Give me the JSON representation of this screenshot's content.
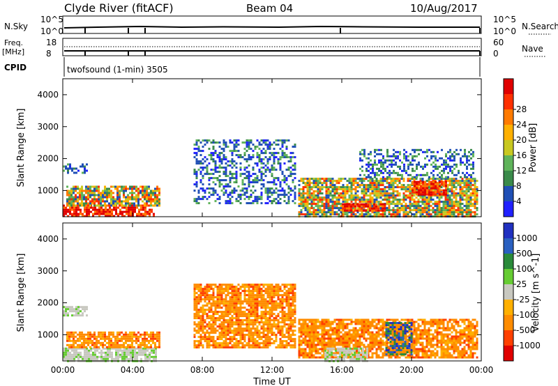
{
  "header": {
    "station": "Clyde River (fitACF)",
    "beam": "Beam 04",
    "date": "10/Aug/2017"
  },
  "panel_labels": {
    "nsky": "N.Sky",
    "nsearch": "N.Search",
    "nsky_top": "10^5",
    "nsky_bottom": "10^0",
    "nsearch_top": "10^5",
    "nsearch_bottom": "10^0",
    "freq_line1": "Freq.",
    "freq_line2": "[MHz]",
    "freq_top": "18",
    "freq_bottom": "8",
    "nave": "Nave",
    "nave_top": "60",
    "nave_bottom": "0",
    "cpid": "CPID",
    "cpid_value": "twofsound (1-min) 3505"
  },
  "colors": {
    "power_scale": [
      "#2020ff",
      "#1f4fb5",
      "#3a8a4a",
      "#5fb35a",
      "#c8c820",
      "#ffb000",
      "#ff7a00",
      "#ff3000",
      "#e00000"
    ],
    "velocity_scale": [
      "#2030c0",
      "#2a60c0",
      "#2a8a3a",
      "#66cc33",
      "#c8c8c0",
      "#ffb000",
      "#ff8c00",
      "#ff4000",
      "#e00000"
    ]
  },
  "chart_data": [
    {
      "type": "heatmap",
      "title": "",
      "ylabel": "Slant Range [km]",
      "xlabel": "Time UT",
      "x_ticks": [
        "00:00",
        "04:00",
        "08:00",
        "12:00",
        "16:00",
        "20:00",
        "00:00"
      ],
      "y_ticks": [
        1000,
        2000,
        3000,
        4000
      ],
      "ylim": [
        180,
        4500
      ],
      "xlim_hours": [
        0,
        24
      ],
      "colorbar": {
        "label": "Power [dB]",
        "ticks": [
          "4",
          "8",
          "12",
          "16",
          "20",
          "24",
          "28"
        ]
      },
      "regions": [
        {
          "t0": 0.0,
          "t1": 5.2,
          "r0": 180,
          "r1": 560,
          "level": "high"
        },
        {
          "t0": 0.2,
          "t1": 5.6,
          "r0": 560,
          "r1": 1150,
          "level": "mid"
        },
        {
          "t0": 0.0,
          "t1": 1.4,
          "r0": 1550,
          "r1": 1850,
          "level": "low"
        },
        {
          "t0": 7.5,
          "t1": 13.3,
          "r0": 600,
          "r1": 2600,
          "level": "low"
        },
        {
          "t0": 13.5,
          "t1": 23.8,
          "r0": 180,
          "r1": 1400,
          "level": "mid"
        },
        {
          "t0": 16.0,
          "t1": 18.5,
          "r0": 350,
          "r1": 600,
          "level": "high"
        },
        {
          "t0": 20.0,
          "t1": 22.0,
          "r0": 900,
          "r1": 1300,
          "level": "high"
        },
        {
          "t0": 17.0,
          "t1": 23.5,
          "r0": 1400,
          "r1": 2300,
          "level": "low"
        }
      ]
    },
    {
      "type": "heatmap",
      "title": "",
      "ylabel": "Slant Range [km]",
      "xlabel": "Time UT",
      "x_ticks": [
        "00:00",
        "04:00",
        "08:00",
        "12:00",
        "16:00",
        "20:00",
        "00:00"
      ],
      "y_ticks": [
        1000,
        2000,
        3000,
        4000
      ],
      "ylim": [
        180,
        4500
      ],
      "xlim_hours": [
        0,
        24
      ],
      "colorbar": {
        "label": "Velocity [m s^-1]",
        "ticks": [
          "1000",
          "500",
          "100",
          "25",
          "-25",
          "-100",
          "-500",
          "-1000"
        ]
      },
      "regions": [
        {
          "t0": 0.0,
          "t1": 5.4,
          "r0": 180,
          "r1": 600,
          "level": "ground"
        },
        {
          "t0": 0.2,
          "t1": 5.6,
          "r0": 600,
          "r1": 1100,
          "level": "away"
        },
        {
          "t0": 0.0,
          "t1": 1.4,
          "r0": 1600,
          "r1": 1900,
          "level": "ground"
        },
        {
          "t0": 7.5,
          "t1": 13.3,
          "r0": 600,
          "r1": 2600,
          "level": "away"
        },
        {
          "t0": 13.5,
          "t1": 23.8,
          "r0": 300,
          "r1": 1500,
          "level": "away"
        },
        {
          "t0": 15.0,
          "t1": 17.5,
          "r0": 180,
          "r1": 600,
          "level": "ground"
        },
        {
          "t0": 18.5,
          "t1": 20.0,
          "r0": 400,
          "r1": 1400,
          "level": "toward"
        }
      ]
    }
  ]
}
